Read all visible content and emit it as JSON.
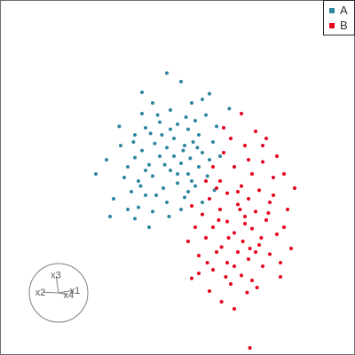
{
  "chart_data": {
    "type": "scatter",
    "title": "",
    "xlabel": "",
    "ylabel": "",
    "xlim": [
      -2.5,
      2.5
    ],
    "ylim": [
      -2.5,
      2.5
    ],
    "grid": false,
    "legend_position": "top-right",
    "series": [
      {
        "name": "A",
        "color": "#2e86a0",
        "points": [
          [
            -0.15,
            1.47
          ],
          [
            0.05,
            1.35
          ],
          [
            -0.5,
            1.2
          ],
          [
            0.45,
            1.18
          ],
          [
            0.73,
            0.97
          ],
          [
            -0.35,
            1.05
          ],
          [
            -0.1,
            0.95
          ],
          [
            0.2,
            1.05
          ],
          [
            0.4,
            0.88
          ],
          [
            0.0,
            0.75
          ],
          [
            -0.25,
            0.78
          ],
          [
            -0.45,
            0.7
          ],
          [
            0.15,
            0.68
          ],
          [
            0.3,
            0.6
          ],
          [
            -0.6,
            0.6
          ],
          [
            -0.05,
            0.55
          ],
          [
            0.22,
            0.5
          ],
          [
            -0.32,
            0.48
          ],
          [
            0.5,
            0.5
          ],
          [
            -0.15,
            0.42
          ],
          [
            0.08,
            0.38
          ],
          [
            -0.5,
            0.38
          ],
          [
            0.35,
            0.35
          ],
          [
            -0.25,
            0.3
          ],
          [
            0.18,
            0.27
          ],
          [
            -0.6,
            0.28
          ],
          [
            0.05,
            0.2
          ],
          [
            -0.4,
            0.18
          ],
          [
            0.3,
            0.15
          ],
          [
            -0.1,
            0.1
          ],
          [
            -0.7,
            0.15
          ],
          [
            0.15,
            0.05
          ],
          [
            -0.35,
            0.02
          ],
          [
            0.42,
            0.02
          ],
          [
            -0.55,
            -0.05
          ],
          [
            0.0,
            -0.08
          ],
          [
            -0.2,
            -0.15
          ],
          [
            0.25,
            -0.12
          ],
          [
            -0.65,
            -0.2
          ],
          [
            -0.45,
            -0.25
          ],
          [
            0.1,
            -0.28
          ],
          [
            -0.15,
            -0.35
          ],
          [
            -0.55,
            -0.42
          ],
          [
            0.05,
            -0.45
          ],
          [
            -0.35,
            -0.48
          ],
          [
            -0.12,
            -0.55
          ],
          [
            -0.6,
            -0.58
          ],
          [
            0.35,
            -0.35
          ],
          [
            -0.8,
            0.45
          ],
          [
            -0.75,
            0.0
          ],
          [
            -0.9,
            -0.3
          ],
          [
            -1.0,
            0.25
          ],
          [
            -0.95,
            -0.55
          ],
          [
            -1.15,
            0.05
          ],
          [
            -0.82,
            0.72
          ],
          [
            -0.28,
            0.88
          ],
          [
            0.12,
            0.85
          ],
          [
            0.55,
            0.72
          ],
          [
            0.6,
            0.3
          ],
          [
            0.52,
            -0.18
          ],
          [
            -0.38,
            0.62
          ],
          [
            -0.05,
            0.3
          ],
          [
            0.25,
            0.8
          ],
          [
            -0.5,
            0.9
          ],
          [
            0.35,
            1.1
          ],
          [
            -0.7,
            -0.45
          ],
          [
            -0.4,
            -0.7
          ],
          [
            0.2,
            -0.05
          ],
          [
            -0.22,
            0.6
          ],
          [
            0.0,
            0.05
          ],
          [
            -0.3,
            -0.25
          ],
          [
            0.45,
            0.25
          ],
          [
            -0.1,
            0.68
          ],
          [
            -0.62,
            0.5
          ],
          [
            0.1,
            0.45
          ],
          [
            -0.45,
            0.1
          ],
          [
            0.28,
            0.42
          ],
          [
            -0.18,
            0.18
          ],
          [
            -0.52,
            -0.12
          ],
          [
            0.15,
            -0.2
          ]
        ]
      },
      {
        "name": "B",
        "color": "#e5001b",
        "points": [
          [
            0.65,
            0.35
          ],
          [
            0.95,
            0.45
          ],
          [
            1.2,
            0.22
          ],
          [
            0.8,
            0.15
          ],
          [
            1.05,
            0.05
          ],
          [
            0.6,
            -0.05
          ],
          [
            1.35,
            0.0
          ],
          [
            0.9,
            -0.12
          ],
          [
            1.15,
            -0.18
          ],
          [
            0.7,
            -0.22
          ],
          [
            1.0,
            -0.3
          ],
          [
            0.45,
            -0.3
          ],
          [
            1.3,
            -0.35
          ],
          [
            0.85,
            -0.38
          ],
          [
            0.6,
            -0.45
          ],
          [
            1.1,
            -0.48
          ],
          [
            0.35,
            -0.52
          ],
          [
            0.95,
            -0.55
          ],
          [
            1.25,
            -0.6
          ],
          [
            0.7,
            -0.62
          ],
          [
            0.5,
            -0.7
          ],
          [
            1.05,
            -0.72
          ],
          [
            0.8,
            -0.78
          ],
          [
            1.4,
            -0.8
          ],
          [
            0.4,
            -0.85
          ],
          [
            0.92,
            -0.9
          ],
          [
            1.15,
            -0.95
          ],
          [
            0.62,
            -0.98
          ],
          [
            0.85,
            -1.05
          ],
          [
            1.3,
            -1.08
          ],
          [
            0.3,
            -1.1
          ],
          [
            1.0,
            -1.15
          ],
          [
            0.7,
            -1.2
          ],
          [
            1.2,
            -1.25
          ],
          [
            0.5,
            -1.3
          ],
          [
            0.9,
            -1.38
          ],
          [
            0.2,
            -1.42
          ],
          [
            1.45,
            -1.2
          ],
          [
            0.75,
            -1.5
          ],
          [
            0.45,
            -1.6
          ],
          [
            0.98,
            -1.62
          ],
          [
            0.62,
            -1.75
          ],
          [
            1.1,
            -1.05
          ],
          [
            0.55,
            -0.15
          ],
          [
            1.35,
            -0.25
          ],
          [
            1.55,
            -0.45
          ],
          [
            0.25,
            -0.7
          ],
          [
            0.3,
            -1.35
          ],
          [
            0.85,
            -0.2
          ],
          [
            1.0,
            0.25
          ],
          [
            1.25,
            0.55
          ],
          [
            0.75,
            0.55
          ],
          [
            1.4,
            0.3
          ],
          [
            1.5,
            -0.7
          ],
          [
            1.6,
            -1.0
          ],
          [
            1.45,
            -1.4
          ],
          [
            1.05,
            -1.45
          ],
          [
            0.8,
            -1.25
          ],
          [
            0.55,
            -1.05
          ],
          [
            0.4,
            -0.05
          ],
          [
            0.15,
            -0.9
          ],
          [
            1.65,
            -0.15
          ],
          [
            1.2,
            0.45
          ],
          [
            0.65,
            0.7
          ],
          [
            0.9,
            0.9
          ],
          [
            1.1,
            0.65
          ],
          [
            0.5,
            0.15
          ],
          [
            0.95,
            -0.65
          ],
          [
            1.18,
            -0.85
          ],
          [
            0.72,
            -0.85
          ],
          [
            1.02,
            -1.0
          ],
          [
            0.58,
            -0.6
          ],
          [
            0.88,
            -0.45
          ],
          [
            1.28,
            -0.5
          ],
          [
            0.42,
            -1.2
          ],
          [
            0.68,
            -1.4
          ],
          [
            1.12,
            -1.55
          ],
          [
            0.2,
            -0.4
          ],
          [
            1.5,
            0.05
          ],
          [
            0.8,
            -1.85
          ],
          [
            1.02,
            -2.4
          ]
        ]
      }
    ],
    "axis_guide": {
      "labels": [
        "x1",
        "x2",
        "x3",
        "x4"
      ],
      "vectors": [
        [
          0.9,
          0.15
        ],
        [
          -1.0,
          0.05
        ],
        [
          -0.15,
          1.0
        ],
        [
          0.55,
          -0.1
        ]
      ]
    }
  }
}
